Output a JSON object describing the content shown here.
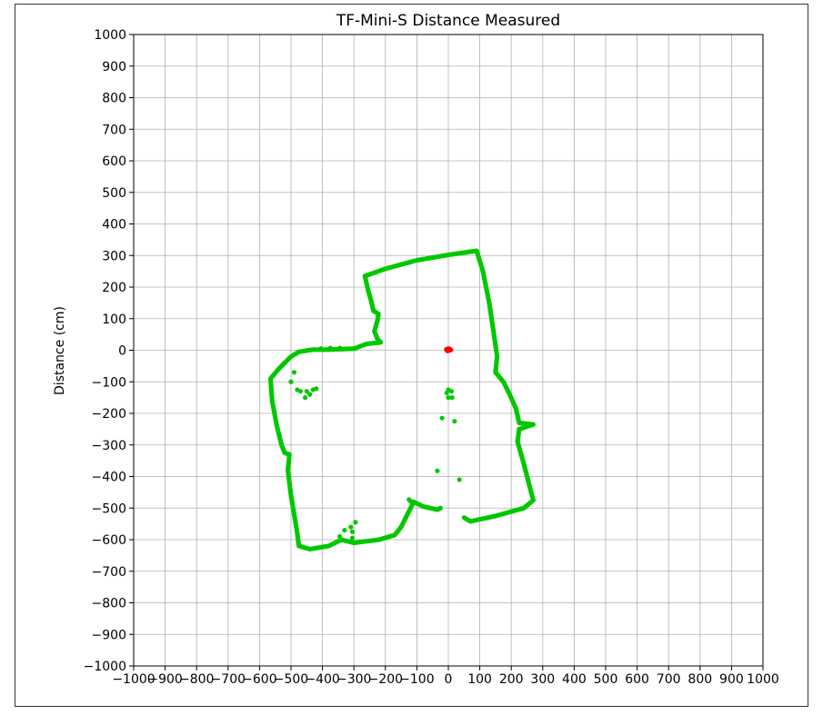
{
  "chart_data": {
    "type": "scatter",
    "title": "TF-Mini-S Distance Measured",
    "xlabel": "",
    "ylabel": "Distance (cm)",
    "xlim": [
      -1000,
      1000
    ],
    "ylim": [
      -1000,
      1000
    ],
    "x_ticks": [
      -1000,
      -900,
      -800,
      -700,
      -600,
      -500,
      -400,
      -300,
      -200,
      -100,
      0,
      100,
      200,
      300,
      400,
      500,
      600,
      700,
      800,
      900,
      1000
    ],
    "y_ticks": [
      1000,
      900,
      800,
      700,
      600,
      500,
      400,
      300,
      200,
      100,
      0,
      -100,
      -200,
      -300,
      -400,
      -500,
      -600,
      -700,
      -800,
      -900,
      -1000
    ],
    "x_tick_labels": [
      "−1000",
      "−900",
      "−800",
      "−700",
      "−600",
      "−500",
      "−400",
      "−300",
      "−200",
      "−100",
      "0",
      "100",
      "200",
      "300",
      "400",
      "500",
      "600",
      "700",
      "800",
      "900",
      "1000"
    ],
    "y_tick_labels": [
      "1000",
      "900",
      "800",
      "700",
      "600",
      "500",
      "400",
      "300",
      "200",
      "100",
      "0",
      "−100",
      "−200",
      "−300",
      "−400",
      "−500",
      "−600",
      "−700",
      "−800",
      "−900",
      "−1000"
    ],
    "grid": true,
    "legend": "none",
    "series": [
      {
        "color": "#00c800",
        "marker": "circle",
        "outline": [
          [
            -265,
            235
          ],
          [
            -200,
            258
          ],
          [
            -100,
            285
          ],
          [
            0,
            302
          ],
          [
            90,
            315
          ],
          [
            110,
            250
          ],
          [
            130,
            150
          ],
          [
            145,
            50
          ],
          [
            155,
            -20
          ],
          [
            150,
            -70
          ],
          [
            175,
            -100
          ],
          [
            195,
            -140
          ],
          [
            215,
            -185
          ],
          [
            225,
            -230
          ],
          [
            270,
            -235
          ],
          [
            225,
            -250
          ],
          [
            220,
            -290
          ],
          [
            240,
            -360
          ],
          [
            258,
            -430
          ],
          [
            270,
            -475
          ],
          [
            240,
            -500
          ],
          [
            150,
            -525
          ],
          [
            70,
            -542
          ],
          [
            50,
            -530
          ]
        ],
        "outline_b": [
          [
            -265,
            235
          ],
          [
            -255,
            190
          ],
          [
            -245,
            155
          ],
          [
            -238,
            125
          ],
          [
            -222,
            115
          ],
          [
            -225,
            95
          ],
          [
            -235,
            60
          ],
          [
            -225,
            35
          ],
          [
            -215,
            25
          ],
          [
            -260,
            20
          ],
          [
            -300,
            5
          ],
          [
            -380,
            2
          ],
          [
            -430,
            2
          ],
          [
            -475,
            -5
          ],
          [
            -500,
            -20
          ],
          [
            -540,
            -60
          ],
          [
            -565,
            -90
          ],
          [
            -560,
            -160
          ],
          [
            -545,
            -240
          ],
          [
            -530,
            -300
          ],
          [
            -520,
            -325
          ],
          [
            -505,
            -330
          ],
          [
            -510,
            -380
          ],
          [
            -500,
            -460
          ],
          [
            -490,
            -520
          ],
          [
            -480,
            -580
          ],
          [
            -475,
            -620
          ],
          [
            -440,
            -630
          ],
          [
            -380,
            -620
          ],
          [
            -340,
            -600
          ],
          [
            -300,
            -610
          ],
          [
            -220,
            -600
          ],
          [
            -170,
            -585
          ],
          [
            -150,
            -560
          ],
          [
            -125,
            -510
          ],
          [
            -110,
            -480
          ],
          [
            -80,
            -495
          ],
          [
            -35,
            -505
          ],
          [
            -25,
            -500
          ]
        ],
        "sparse": [
          [
            -375,
            7
          ],
          [
            -345,
            7
          ],
          [
            -405,
            5
          ],
          [
            -450,
            -130
          ],
          [
            -430,
            -125
          ],
          [
            -420,
            -122
          ],
          [
            -455,
            -150
          ],
          [
            -440,
            -140
          ],
          [
            -490,
            -70
          ],
          [
            -500,
            -100
          ],
          [
            -480,
            -125
          ],
          [
            -470,
            -130
          ],
          [
            0,
            -125
          ],
          [
            10,
            -130
          ],
          [
            12,
            -150
          ],
          [
            -5,
            -135
          ],
          [
            0,
            -150
          ],
          [
            20,
            -225
          ],
          [
            -20,
            -215
          ],
          [
            35,
            -410
          ],
          [
            -35,
            -382
          ],
          [
            -330,
            -570
          ],
          [
            -310,
            -560
          ],
          [
            -305,
            -575
          ],
          [
            -295,
            -545
          ],
          [
            -345,
            -590
          ],
          [
            -360,
            -610
          ],
          [
            -305,
            -595
          ],
          [
            -125,
            -473
          ],
          [
            -120,
            -478
          ]
        ]
      },
      {
        "color": "#ff0000",
        "marker": "circle",
        "points": [
          [
            -5,
            0
          ],
          [
            0,
            2
          ],
          [
            5,
            4
          ],
          [
            -3,
            -2
          ],
          [
            3,
            -1
          ],
          [
            0,
            5
          ],
          [
            8,
            1
          ],
          [
            -6,
            3
          ]
        ]
      }
    ]
  }
}
